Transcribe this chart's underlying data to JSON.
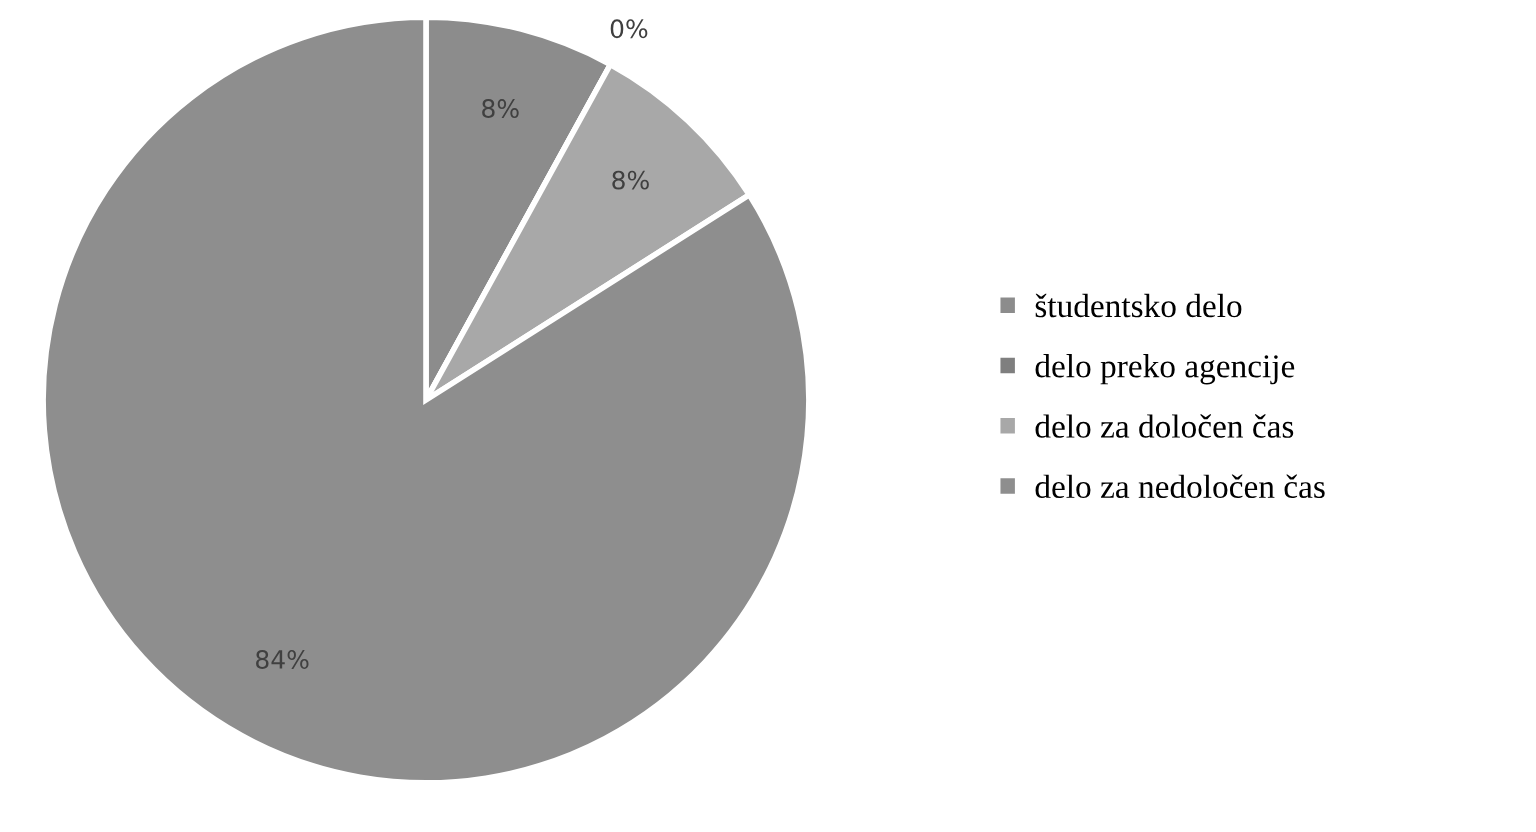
{
  "chart_data": {
    "type": "pie",
    "categories": [
      "študentsko delo",
      "delo preko agencije",
      "delo za določen čas",
      "delo za nedoločen čas"
    ],
    "values": [
      8,
      0,
      8,
      84
    ],
    "value_labels": [
      "8%",
      "0%",
      "8%",
      "84%"
    ],
    "colors": [
      "#8c8c8c",
      "#7f7f7f",
      "#a8a8a8",
      "#8e8e8e"
    ],
    "legend": "right"
  }
}
